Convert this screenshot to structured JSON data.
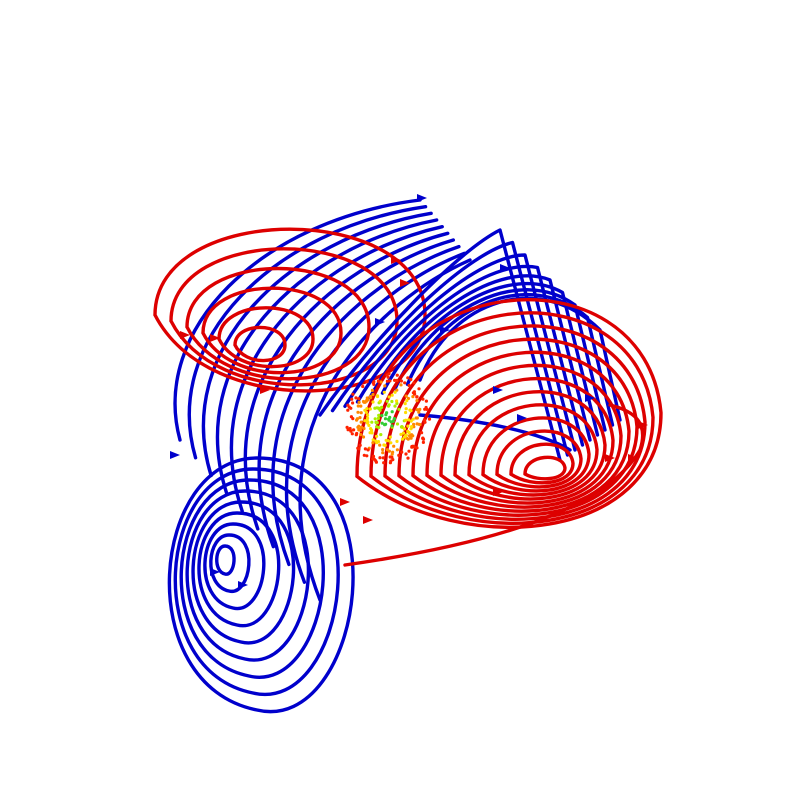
{
  "scene": {
    "kind": "3d-field-line-rendering",
    "background": "#ffffff",
    "colors": {
      "negative": "#0000cc",
      "positive": "#dd0000",
      "source_core": [
        "#33cc33",
        "#aaee00",
        "#ffdd00",
        "#ff8800",
        "#ff2200"
      ]
    },
    "groups": [
      {
        "id": "blue-upper-left",
        "polarity": "negative",
        "loops": 10
      },
      {
        "id": "blue-lower-left-vortex",
        "polarity": "negative",
        "loops": 9
      },
      {
        "id": "red-upper-left-vortex",
        "polarity": "positive",
        "loops": 6
      },
      {
        "id": "red-right-vortex",
        "polarity": "positive",
        "loops": 13
      },
      {
        "id": "blue-right-upper",
        "polarity": "negative",
        "loops": 9
      }
    ]
  }
}
